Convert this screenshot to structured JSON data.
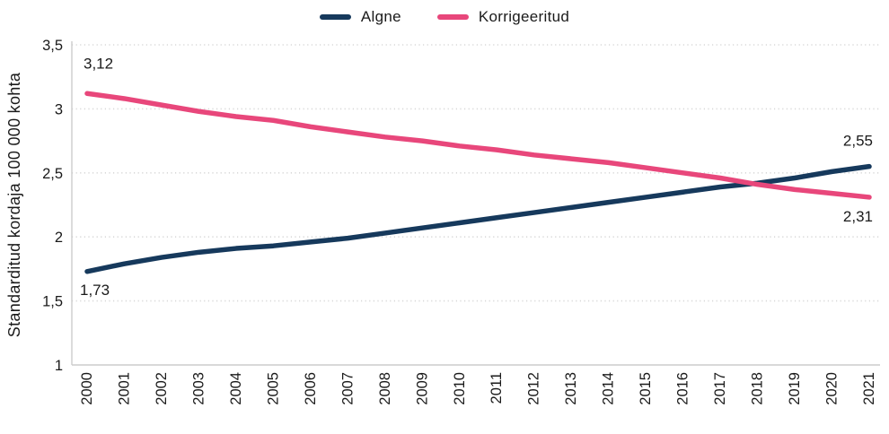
{
  "legend": {
    "items": [
      {
        "label": "Algne",
        "color": "#16395C"
      },
      {
        "label": "Korrigeeritud",
        "color": "#E8477B"
      }
    ]
  },
  "chart_data": {
    "type": "line",
    "title": "",
    "xlabel": "",
    "ylabel": "Standarditud kordaja 100 000 kohta",
    "x": [
      2000,
      2001,
      2002,
      2003,
      2004,
      2005,
      2006,
      2007,
      2008,
      2009,
      2010,
      2011,
      2012,
      2013,
      2014,
      2015,
      2016,
      2017,
      2018,
      2019,
      2020,
      2021
    ],
    "series": [
      {
        "name": "Algne",
        "color": "#16395C",
        "values": [
          1.73,
          1.79,
          1.84,
          1.88,
          1.91,
          1.93,
          1.96,
          1.99,
          2.03,
          2.07,
          2.11,
          2.15,
          2.19,
          2.23,
          2.27,
          2.31,
          2.35,
          2.39,
          2.42,
          2.46,
          2.51,
          2.55
        ]
      },
      {
        "name": "Korrigeeritud",
        "color": "#E8477B",
        "values": [
          3.12,
          3.08,
          3.03,
          2.98,
          2.94,
          2.91,
          2.86,
          2.82,
          2.78,
          2.75,
          2.71,
          2.68,
          2.64,
          2.61,
          2.58,
          2.54,
          2.5,
          2.46,
          2.41,
          2.37,
          2.34,
          2.31
        ]
      }
    ],
    "ylim": [
      1,
      3.5
    ],
    "ytick_values": [
      1,
      1.5,
      2,
      2.5,
      3,
      3.5
    ],
    "ytick_labels": [
      "1",
      "1,5",
      "2",
      "2,5",
      "3",
      "3,5"
    ],
    "grid": "horizontal-dotted",
    "legend_position": "top-center",
    "decimal_separator": ",",
    "annotations": [
      {
        "text": "3,12",
        "series": "Korrigeeritud",
        "year": 2000,
        "position": "above-start"
      },
      {
        "text": "1,73",
        "series": "Algne",
        "year": 2000,
        "position": "below-start"
      },
      {
        "text": "2,55",
        "series": "Algne",
        "year": 2021,
        "position": "above-end"
      },
      {
        "text": "2,31",
        "series": "Korrigeeritud",
        "year": 2021,
        "position": "below-end"
      }
    ],
    "colors": {
      "grid": "#d8d8d8",
      "axis": "#cccccc",
      "text": "#1a1a1a"
    }
  }
}
